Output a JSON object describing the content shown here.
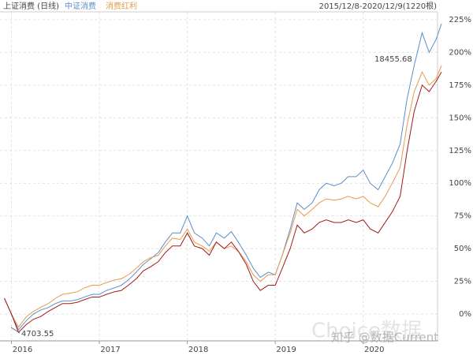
{
  "chart_data": {
    "type": "line",
    "legend": [
      "上证消费 (日线)",
      "中证消费",
      "消费红利"
    ],
    "date_range": "2015/12/8-2020/12/9(1220根)",
    "annotations": [
      "18455.68",
      "4703.55"
    ],
    "watermarks": [
      "Choice数据",
      "知乎 @数据Current"
    ],
    "x": [
      2015.92,
      2016.0,
      2016.08,
      2016.17,
      2016.25,
      2016.33,
      2016.42,
      2016.5,
      2016.58,
      2016.67,
      2016.75,
      2016.83,
      2016.92,
      2017.0,
      2017.08,
      2017.17,
      2017.25,
      2017.33,
      2017.42,
      2017.5,
      2017.58,
      2017.67,
      2017.75,
      2017.83,
      2017.92,
      2018.0,
      2018.08,
      2018.17,
      2018.25,
      2018.33,
      2018.42,
      2018.5,
      2018.58,
      2018.67,
      2018.75,
      2018.83,
      2018.92,
      2019.0,
      2019.08,
      2019.17,
      2019.25,
      2019.33,
      2019.42,
      2019.5,
      2019.58,
      2019.67,
      2019.75,
      2019.83,
      2019.92,
      2020.0,
      2020.08,
      2020.17,
      2020.25,
      2020.33,
      2020.42,
      2020.5,
      2020.58,
      2020.67,
      2020.75,
      2020.83,
      2020.89
    ],
    "series": [
      {
        "name": "中证消费",
        "color": "#5b8fc9",
        "values": [
          12,
          0,
          -12,
          -5,
          0,
          3,
          5,
          8,
          10,
          10,
          11,
          13,
          15,
          15,
          18,
          20,
          22,
          26,
          32,
          38,
          42,
          47,
          55,
          62,
          62,
          75,
          62,
          58,
          52,
          62,
          58,
          63,
          55,
          45,
          35,
          28,
          32,
          30,
          45,
          65,
          85,
          80,
          85,
          95,
          100,
          98,
          100,
          105,
          105,
          110,
          100,
          95,
          105,
          115,
          130,
          165,
          190,
          215,
          200,
          210,
          222
        ]
      },
      {
        "name": "消费红利",
        "color": "#e89a4c",
        "values": [
          12,
          0,
          -10,
          -2,
          2,
          5,
          8,
          12,
          15,
          16,
          17,
          20,
          22,
          22,
          24,
          26,
          27,
          30,
          35,
          40,
          43,
          45,
          52,
          58,
          57,
          65,
          55,
          52,
          48,
          55,
          50,
          52,
          48,
          40,
          30,
          25,
          30,
          30,
          45,
          62,
          80,
          75,
          80,
          85,
          88,
          87,
          88,
          90,
          88,
          90,
          85,
          82,
          90,
          100,
          112,
          145,
          170,
          185,
          175,
          180,
          190
        ]
      },
      {
        "name": "上证消费",
        "color": "#a31a1a",
        "values": [
          12,
          0,
          -14,
          -8,
          -4,
          -2,
          2,
          5,
          8,
          8,
          9,
          11,
          13,
          13,
          15,
          17,
          18,
          22,
          27,
          33,
          36,
          40,
          47,
          52,
          52,
          62,
          52,
          50,
          45,
          55,
          50,
          55,
          48,
          38,
          25,
          18,
          22,
          22,
          35,
          50,
          68,
          62,
          65,
          70,
          72,
          70,
          70,
          72,
          70,
          72,
          65,
          62,
          70,
          78,
          90,
          125,
          155,
          175,
          170,
          178,
          185
        ]
      }
    ],
    "xlim": [
      2015.87,
      2020.89
    ],
    "xticks": [
      {
        "value": 2016,
        "label": "2016"
      },
      {
        "value": 2017,
        "label": "2017"
      },
      {
        "value": 2018,
        "label": "2018"
      },
      {
        "value": 2019,
        "label": "2019"
      },
      {
        "value": 2020,
        "label": "2020"
      }
    ],
    "ylim": [
      -20.5,
      231
    ],
    "yticks": [
      {
        "value": 0,
        "label": "0%"
      },
      {
        "value": 25,
        "label": "25%"
      },
      {
        "value": 50,
        "label": "50%"
      },
      {
        "value": 75,
        "label": "75%"
      },
      {
        "value": 100,
        "label": "100%"
      },
      {
        "value": 125,
        "label": "125%"
      },
      {
        "value": 150,
        "label": "150%"
      },
      {
        "value": 175,
        "label": "175%"
      },
      {
        "value": 200,
        "label": "200%"
      },
      {
        "value": 225,
        "label": "225%"
      }
    ],
    "grid": true
  }
}
